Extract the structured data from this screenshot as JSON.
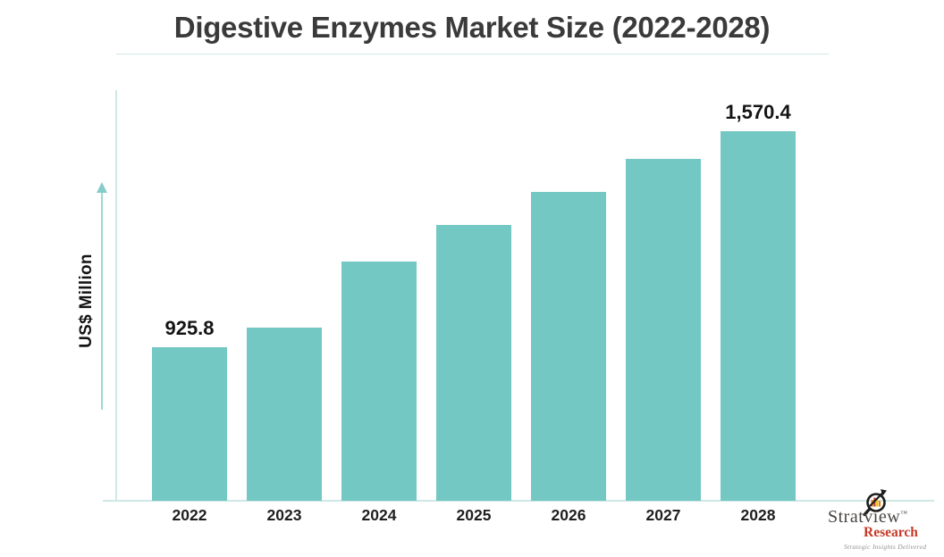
{
  "chart_data": {
    "type": "bar",
    "title": "Digestive Enzymes Market Size (2022-2028)",
    "ylabel": "US$ Million",
    "xlabel": "",
    "categories": [
      "2022",
      "2023",
      "2024",
      "2025",
      "2026",
      "2027",
      "2028"
    ],
    "values": [
      925.8,
      984,
      1181,
      1291,
      1389,
      1488,
      1570.4
    ],
    "data_labels": [
      "925.8",
      null,
      null,
      null,
      null,
      null,
      "1,570.4"
    ],
    "bar_color": "#74c8c4",
    "axis_color": "#cfe8e6",
    "arrow_color": "#86cdc9",
    "grid": "off",
    "legend": "none"
  },
  "branding": {
    "name": "Stratview",
    "trademark": "™",
    "sub": "Research",
    "tagline": "Strategic Insights Delivered",
    "name_color": "#4a4442",
    "sub_color": "#c53a28",
    "tagline_color": "#8f8f8f"
  }
}
